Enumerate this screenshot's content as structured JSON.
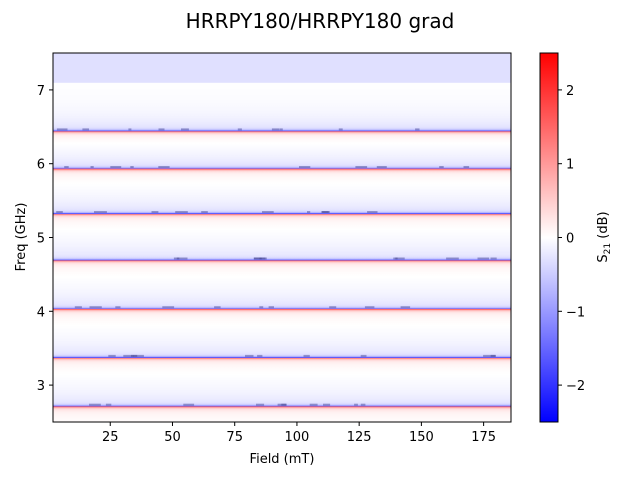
{
  "chart_data": {
    "type": "heatmap",
    "title": "HRRPY180/HRRPY180 grad",
    "xlabel": "Field (mT)",
    "ylabel": "Freq (GHz)",
    "colorbar_label_main": "S",
    "colorbar_label_sub": "21",
    "colorbar_label_unit": " (dB)",
    "xlim": [
      2,
      186
    ],
    "ylim": [
      2.5,
      7.5
    ],
    "x_ticks": [
      25,
      50,
      75,
      100,
      125,
      150,
      175
    ],
    "y_ticks": [
      3,
      4,
      5,
      6,
      7
    ],
    "colorbar_range": [
      -2.5,
      2.5
    ],
    "colorbar_ticks": [
      -2,
      -1,
      0,
      1,
      2
    ],
    "colormap": [
      "#0000ff",
      "#ffffff",
      "#ff0000"
    ],
    "resonances_GHz": [
      2.71,
      3.37,
      4.03,
      4.69,
      5.32,
      5.93,
      6.44
    ],
    "resonance_pattern": "blue (negative) band just above each resonance frequency, red (positive) band just below; independent of field",
    "upper_region": {
      "from_GHz": 7.1,
      "to_GHz": 7.5,
      "value_dB": -0.3
    }
  }
}
